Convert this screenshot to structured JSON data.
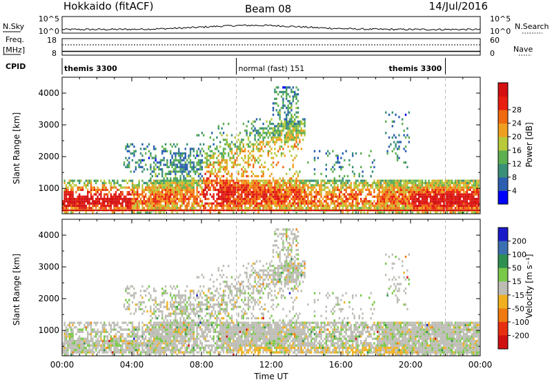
{
  "header": {
    "radar": "Hokkaido (fitACF)",
    "beam": "Beam 08",
    "date": "14/Jul/2016"
  },
  "aux": {
    "nsky_label": "N.Sky",
    "nsearch_label": "N.Search",
    "nsky_ticks": [
      "10^5",
      "10^0"
    ],
    "nsearch_ticks": [
      "10^5",
      "10^0"
    ],
    "freq_label": "Freq.",
    "freq_unit": "[MHz]",
    "freq_ticks": [
      "18",
      "8"
    ],
    "nave_label": "Nave",
    "nave_ticks": [
      "60",
      "0"
    ],
    "cpid_label": "CPID",
    "modes": [
      {
        "name": "themis 3300",
        "start_hour": 0,
        "end_hour": 10
      },
      {
        "name": "normal (fast) 151",
        "start_hour": 10,
        "end_hour": 22
      },
      {
        "name": "themis 3300",
        "start_hour": 22,
        "end_hour": 24
      }
    ],
    "freq_mhz": 10.5
  },
  "chart_data": [
    {
      "type": "heatmap",
      "panel": "power",
      "ylabel": "Slant Range [km]",
      "xlabel": "",
      "xlim": [
        0,
        24
      ],
      "ylim": [
        200,
        4500
      ],
      "yticks": [
        "1000",
        "2000",
        "3000",
        "4000"
      ],
      "xtick_labels": [
        "00:00",
        "04:00",
        "08:00",
        "12:00",
        "16:00",
        "20:00",
        "00:00"
      ],
      "colorbar": {
        "label": "Power [dB]",
        "ticks": [
          "4",
          "8",
          "12",
          "16",
          "20",
          "24",
          "28"
        ],
        "range": [
          0,
          30
        ],
        "colors": [
          "#0000ff",
          "#2b5fb0",
          "#3a8f78",
          "#5db04f",
          "#b8c93a",
          "#f0a020",
          "#f06a10",
          "#e81e10",
          "#d41010"
        ]
      }
    },
    {
      "type": "heatmap",
      "panel": "velocity",
      "ylabel": "Slant Range [km]",
      "xlabel": "Time UT",
      "xlim": [
        0,
        24
      ],
      "ylim": [
        200,
        4500
      ],
      "yticks": [
        "1000",
        "2000",
        "3000",
        "4000"
      ],
      "xtick_labels": [
        "00:00",
        "04:00",
        "08:00",
        "12:00",
        "16:00",
        "20:00",
        "00:00"
      ],
      "colorbar": {
        "label": "Velocity [m s⁻¹]",
        "ticks": [
          "200",
          "100",
          "50",
          "15",
          "-15",
          "-50",
          "-100",
          "-200"
        ],
        "colors": [
          "#1a1ac8",
          "#3a70b0",
          "#2f8f50",
          "#7ac84a",
          "#bdbdb5",
          "#f0b020",
          "#f07a10",
          "#e83010",
          "#d01010"
        ]
      }
    }
  ]
}
